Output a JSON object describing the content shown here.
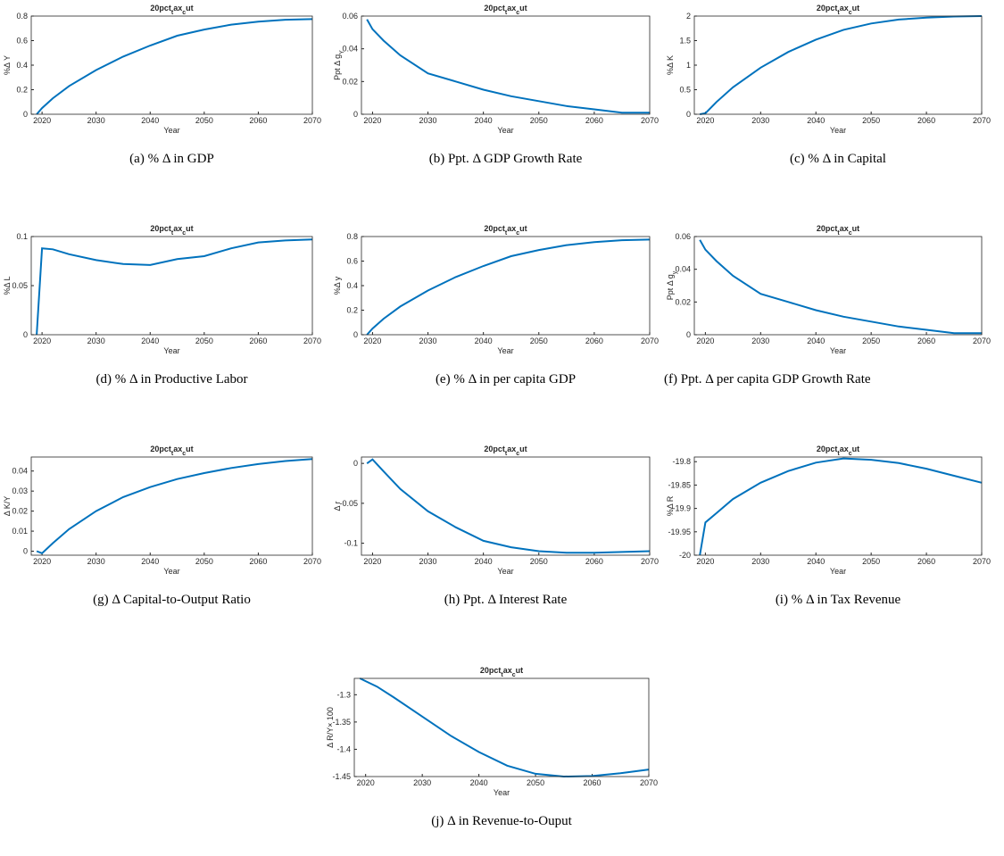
{
  "chart_data": [
    {
      "type": "line",
      "title": "20pct_tax_cut",
      "xlabel": "Year",
      "ylabel": "%Δ Y",
      "caption": "(a) % Δ in GDP",
      "color": "#0072bd",
      "x": [
        2019,
        2020,
        2022,
        2025,
        2030,
        2035,
        2040,
        2045,
        2050,
        2055,
        2060,
        2065,
        2070
      ],
      "values": [
        0,
        0.05,
        0.13,
        0.23,
        0.36,
        0.47,
        0.56,
        0.64,
        0.69,
        0.73,
        0.755,
        0.77,
        0.775
      ],
      "xlim": [
        2018,
        2070
      ],
      "xticks": [
        2020,
        2030,
        2040,
        2050,
        2060,
        2070
      ],
      "ylim": [
        0,
        0.8
      ],
      "yticks": [
        0,
        0.2,
        0.4,
        0.6,
        0.8
      ]
    },
    {
      "type": "line",
      "title": "20pct_tax_cut",
      "xlabel": "Year",
      "ylabel": "Ppt Δ g_Y",
      "caption": "(b) Ppt. Δ GDP Growth Rate",
      "color": "#0072bd",
      "x": [
        2019,
        2020,
        2022,
        2025,
        2030,
        2035,
        2040,
        2045,
        2050,
        2055,
        2060,
        2065,
        2070
      ],
      "values": [
        0.058,
        0.052,
        0.045,
        0.036,
        0.025,
        0.02,
        0.015,
        0.011,
        0.008,
        0.005,
        0.003,
        0.001,
        0.001
      ],
      "xlim": [
        2018,
        2070
      ],
      "xticks": [
        2020,
        2030,
        2040,
        2050,
        2060,
        2070
      ],
      "ylim": [
        0,
        0.06
      ],
      "yticks": [
        0,
        0.02,
        0.04,
        0.06
      ]
    },
    {
      "type": "line",
      "title": "20pct_tax_cut",
      "xlabel": "Year",
      "ylabel": "%Δ K",
      "caption": "(c) % Δ in Capital",
      "color": "#0072bd",
      "x": [
        2019,
        2020,
        2022,
        2025,
        2030,
        2035,
        2040,
        2045,
        2050,
        2055,
        2060,
        2065,
        2070
      ],
      "values": [
        0,
        0.02,
        0.25,
        0.55,
        0.95,
        1.27,
        1.52,
        1.72,
        1.85,
        1.93,
        1.97,
        1.99,
        2.0
      ],
      "xlim": [
        2018,
        2070
      ],
      "xticks": [
        2020,
        2030,
        2040,
        2050,
        2060,
        2070
      ],
      "ylim": [
        0,
        2
      ],
      "yticks": [
        0,
        0.5,
        1,
        1.5,
        2
      ]
    },
    {
      "type": "line",
      "title": "20pct_tax_cut",
      "xlabel": "Year",
      "ylabel": "%Δ L",
      "caption": "(d) % Δ in Productive Labor",
      "color": "#0072bd",
      "x": [
        2019,
        2020,
        2022,
        2025,
        2030,
        2035,
        2040,
        2045,
        2050,
        2055,
        2060,
        2065,
        2070
      ],
      "values": [
        0,
        0.088,
        0.087,
        0.082,
        0.076,
        0.072,
        0.071,
        0.077,
        0.08,
        0.088,
        0.094,
        0.096,
        0.097
      ],
      "xlim": [
        2018,
        2070
      ],
      "xticks": [
        2020,
        2030,
        2040,
        2050,
        2060,
        2070
      ],
      "ylim": [
        0,
        0.1
      ],
      "yticks": [
        0,
        0.05,
        0.1
      ]
    },
    {
      "type": "line",
      "title": "20pct_tax_cut",
      "xlabel": "Year",
      "ylabel": "%Δ y",
      "caption": "(e) % Δ in per capita GDP",
      "color": "#0072bd",
      "x": [
        2019,
        2020,
        2022,
        2025,
        2030,
        2035,
        2040,
        2045,
        2050,
        2055,
        2060,
        2065,
        2070
      ],
      "values": [
        0,
        0.05,
        0.13,
        0.23,
        0.36,
        0.47,
        0.56,
        0.64,
        0.69,
        0.73,
        0.755,
        0.77,
        0.775
      ],
      "xlim": [
        2018,
        2070
      ],
      "xticks": [
        2020,
        2030,
        2040,
        2050,
        2060,
        2070
      ],
      "ylim": [
        0,
        0.8
      ],
      "yticks": [
        0,
        0.2,
        0.4,
        0.6,
        0.8
      ]
    },
    {
      "type": "line",
      "title": "20pct_tax_cut",
      "xlabel": "Year",
      "ylabel": "Ppt Δ g_y",
      "caption": "(f) Ppt. Δ per capita GDP Growth Rate",
      "color": "#0072bd",
      "x": [
        2019,
        2020,
        2022,
        2025,
        2030,
        2035,
        2040,
        2045,
        2050,
        2055,
        2060,
        2065,
        2070
      ],
      "values": [
        0.058,
        0.052,
        0.045,
        0.036,
        0.025,
        0.02,
        0.015,
        0.011,
        0.008,
        0.005,
        0.003,
        0.001,
        0.001
      ],
      "xlim": [
        2018,
        2070
      ],
      "xticks": [
        2020,
        2030,
        2040,
        2050,
        2060,
        2070
      ],
      "ylim": [
        0,
        0.06
      ],
      "yticks": [
        0,
        0.02,
        0.04,
        0.06
      ]
    },
    {
      "type": "line",
      "title": "20pct_tax_cut",
      "xlabel": "Year",
      "ylabel": "Δ K/Y",
      "caption": "(g) Δ Capital-to-Output Ratio",
      "color": "#0072bd",
      "x": [
        2019,
        2020,
        2022,
        2025,
        2030,
        2035,
        2040,
        2045,
        2050,
        2055,
        2060,
        2065,
        2070
      ],
      "values": [
        0,
        -0.001,
        0.004,
        0.011,
        0.02,
        0.027,
        0.032,
        0.036,
        0.039,
        0.0415,
        0.0435,
        0.045,
        0.046
      ],
      "xlim": [
        2018,
        2070
      ],
      "xticks": [
        2020,
        2030,
        2040,
        2050,
        2060,
        2070
      ],
      "ylim": [
        -0.002,
        0.047
      ],
      "yticks": [
        0,
        0.01,
        0.02,
        0.03,
        0.04
      ]
    },
    {
      "type": "line",
      "title": "20pct_tax_cut",
      "xlabel": "Year",
      "ylabel": "Δ r",
      "caption": "(h) Ppt. Δ Interest Rate",
      "color": "#0072bd",
      "x": [
        2019,
        2020,
        2022,
        2025,
        2030,
        2035,
        2040,
        2045,
        2050,
        2055,
        2060,
        2065,
        2070
      ],
      "values": [
        0,
        0.005,
        -0.01,
        -0.032,
        -0.06,
        -0.08,
        -0.097,
        -0.105,
        -0.11,
        -0.112,
        -0.112,
        -0.111,
        -0.11
      ],
      "xlim": [
        2018,
        2070
      ],
      "xticks": [
        2020,
        2030,
        2040,
        2050,
        2060,
        2070
      ],
      "ylim": [
        -0.115,
        0.008
      ],
      "yticks": [
        -0.1,
        -0.05,
        0
      ]
    },
    {
      "type": "line",
      "title": "20pct_tax_cut",
      "xlabel": "Year",
      "ylabel": "%Δ R",
      "caption": "(i) % Δ in Tax Revenue",
      "color": "#0072bd",
      "x": [
        2019,
        2020,
        2022,
        2025,
        2030,
        2035,
        2040,
        2045,
        2050,
        2055,
        2060,
        2065,
        2070
      ],
      "values": [
        -20,
        -19.93,
        -19.91,
        -19.88,
        -19.845,
        -19.82,
        -19.802,
        -19.793,
        -19.796,
        -19.803,
        -19.815,
        -19.83,
        -19.845
      ],
      "xlim": [
        2018,
        2070
      ],
      "xticks": [
        2020,
        2030,
        2040,
        2050,
        2060,
        2070
      ],
      "ylim": [
        -20,
        -19.79
      ],
      "yticks": [
        -20,
        -19.95,
        -19.9,
        -19.85,
        -19.8
      ]
    },
    {
      "type": "line",
      "title": "20pct_tax_cut",
      "xlabel": "Year",
      "ylabel": "Δ R/Y× 100",
      "caption": "(j) Δ in Revenue-to-Ouput",
      "color": "#0072bd",
      "x": [
        2019,
        2020,
        2022,
        2025,
        2030,
        2035,
        2040,
        2045,
        2050,
        2055,
        2060,
        2065,
        2070
      ],
      "values": [
        -1.27,
        -1.275,
        -1.285,
        -1.305,
        -1.34,
        -1.375,
        -1.405,
        -1.43,
        -1.445,
        -1.45,
        -1.449,
        -1.444,
        -1.437
      ],
      "xlim": [
        2018,
        2070
      ],
      "xticks": [
        2020,
        2030,
        2040,
        2050,
        2060,
        2070
      ],
      "ylim": [
        -1.45,
        -1.27
      ],
      "yticks": [
        -1.45,
        -1.4,
        -1.35,
        -1.3
      ]
    }
  ]
}
